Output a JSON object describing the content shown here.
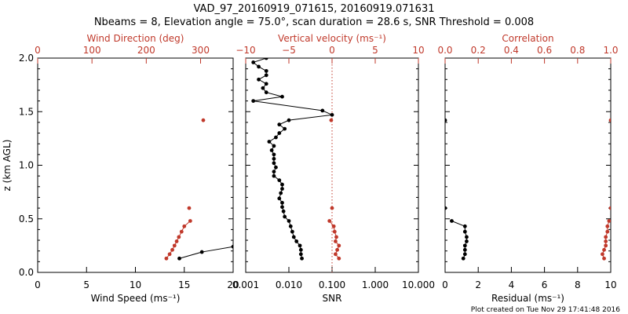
{
  "title_line1": "VAD_97_20160919_071615, 20160919.071631",
  "title_line2": "Nbeams = 8, Elevation angle = 75.0°, scan duration = 28.6 s, SNR Threshold = 0.008",
  "credit": "Plot created on Tue Nov 29 17:41:48 2016",
  "colors": {
    "black": "#000000",
    "red": "#c0392b"
  },
  "chart_data": [
    {
      "type": "scatter",
      "panel": "wind",
      "ylabel": "z (km AGL)",
      "ylim": [
        0,
        2
      ],
      "y_ticks": [
        "0.0",
        "0.5",
        "1.0",
        "1.5",
        "2.0"
      ],
      "bottom_axis": {
        "label": "Wind Speed (ms⁻¹)",
        "range": [
          0,
          20
        ],
        "ticks": [
          "0",
          "5",
          "10",
          "15",
          "20"
        ]
      },
      "top_axis": {
        "label": "Wind Direction (deg)",
        "range": [
          0,
          360
        ],
        "ticks": [
          "0",
          "100",
          "200",
          "300"
        ]
      },
      "series": [
        {
          "axis": "bottom",
          "connected": true,
          "color": "black",
          "points": [
            [
              14.5,
              0.13
            ],
            [
              16.8,
              0.19
            ],
            [
              20.0,
              0.24
            ]
          ]
        },
        {
          "axis": "top",
          "connected": true,
          "color": "red",
          "points": [
            [
              237,
              0.13
            ],
            [
              243,
              0.17
            ],
            [
              248,
              0.21
            ],
            [
              252,
              0.25
            ],
            [
              256,
              0.29
            ],
            [
              260,
              0.33
            ],
            [
              265,
              0.38
            ],
            [
              270,
              0.43
            ],
            [
              281,
              0.48
            ]
          ]
        },
        {
          "axis": "top",
          "connected": false,
          "color": "red",
          "points": [
            [
              279,
              0.6
            ],
            [
              305,
              1.42
            ]
          ]
        }
      ]
    },
    {
      "type": "line",
      "panel": "snr",
      "ylim": [
        0,
        2
      ],
      "bottom_axis": {
        "label": "SNR",
        "scale": "log",
        "range": [
          0.001,
          10
        ],
        "ticks": [
          "0.001",
          "0.010",
          "0.100",
          "1.000",
          "10.000"
        ]
      },
      "top_axis": {
        "label": "Vertical velocity (ms⁻¹)",
        "range": [
          -10,
          10
        ],
        "ticks": [
          "−10",
          "−5",
          "0",
          "5",
          "10"
        ]
      },
      "reference_line": {
        "axis": "top",
        "value": 0,
        "style": "dotted",
        "color": "red"
      },
      "series": [
        {
          "axis": "bottom",
          "connected": true,
          "color": "black",
          "points": [
            [
              0.02,
              0.13
            ],
            [
              0.019,
              0.17
            ],
            [
              0.019,
              0.21
            ],
            [
              0.018,
              0.25
            ],
            [
              0.015,
              0.29
            ],
            [
              0.013,
              0.33
            ],
            [
              0.012,
              0.38
            ],
            [
              0.011,
              0.43
            ],
            [
              0.01,
              0.48
            ],
            [
              0.008,
              0.52
            ],
            [
              0.0075,
              0.57
            ],
            [
              0.007,
              0.61
            ],
            [
              0.007,
              0.65
            ],
            [
              0.006,
              0.69
            ],
            [
              0.0065,
              0.74
            ],
            [
              0.007,
              0.78
            ],
            [
              0.007,
              0.82
            ],
            [
              0.006,
              0.86
            ],
            [
              0.0045,
              0.9
            ],
            [
              0.0045,
              0.94
            ],
            [
              0.005,
              0.98
            ],
            [
              0.0045,
              1.02
            ],
            [
              0.0045,
              1.06
            ],
            [
              0.0045,
              1.1
            ],
            [
              0.004,
              1.14
            ],
            [
              0.0045,
              1.18
            ],
            [
              0.0035,
              1.22
            ],
            [
              0.005,
              1.26
            ],
            [
              0.006,
              1.3
            ],
            [
              0.008,
              1.34
            ],
            [
              0.006,
              1.38
            ],
            [
              0.01,
              1.42
            ],
            [
              0.1,
              1.47
            ],
            [
              0.06,
              1.51
            ],
            [
              0.0015,
              1.6
            ],
            [
              0.007,
              1.64
            ],
            [
              0.003,
              1.68
            ],
            [
              0.0025,
              1.72
            ],
            [
              0.003,
              1.76
            ],
            [
              0.002,
              1.8
            ],
            [
              0.003,
              1.84
            ],
            [
              0.003,
              1.88
            ],
            [
              0.002,
              1.92
            ],
            [
              0.0015,
              1.96
            ],
            [
              0.003,
              2.0
            ]
          ]
        },
        {
          "axis": "top",
          "connected": true,
          "color": "red",
          "points": [
            [
              0.8,
              0.13
            ],
            [
              0.4,
              0.17
            ],
            [
              0.6,
              0.21
            ],
            [
              0.8,
              0.25
            ],
            [
              0.4,
              0.29
            ],
            [
              0.5,
              0.33
            ],
            [
              0.3,
              0.38
            ],
            [
              0.2,
              0.43
            ],
            [
              -0.3,
              0.48
            ]
          ]
        },
        {
          "axis": "top",
          "connected": false,
          "color": "red",
          "points": [
            [
              0.0,
              0.6
            ],
            [
              -0.1,
              1.42
            ]
          ]
        }
      ]
    },
    {
      "type": "line",
      "panel": "residual",
      "ylim": [
        0,
        2
      ],
      "bottom_axis": {
        "label": "Residual (ms⁻¹)",
        "range": [
          0,
          10
        ],
        "ticks": [
          "0",
          "2",
          "4",
          "6",
          "8",
          "10"
        ]
      },
      "top_axis": {
        "label": "Correlation",
        "range": [
          0,
          1
        ],
        "ticks": [
          "0.0",
          "0.2",
          "0.4",
          "0.6",
          "0.8",
          "1.0"
        ]
      },
      "series": [
        {
          "axis": "bottom",
          "connected": true,
          "color": "black",
          "points": [
            [
              1.1,
              0.13
            ],
            [
              1.2,
              0.17
            ],
            [
              1.2,
              0.21
            ],
            [
              1.2,
              0.25
            ],
            [
              1.3,
              0.29
            ],
            [
              1.3,
              0.33
            ],
            [
              1.2,
              0.38
            ],
            [
              1.2,
              0.43
            ],
            [
              0.4,
              0.48
            ]
          ]
        },
        {
          "axis": "bottom",
          "connected": false,
          "color": "black",
          "points": [
            [
              0.0,
              0.6
            ],
            [
              0.0,
              1.42
            ]
          ]
        },
        {
          "axis": "top",
          "connected": true,
          "color": "red",
          "points": [
            [
              0.96,
              0.13
            ],
            [
              0.95,
              0.17
            ],
            [
              0.96,
              0.21
            ],
            [
              0.97,
              0.25
            ],
            [
              0.97,
              0.29
            ],
            [
              0.97,
              0.33
            ],
            [
              0.98,
              0.38
            ],
            [
              0.98,
              0.43
            ],
            [
              0.99,
              0.48
            ]
          ]
        },
        {
          "axis": "top",
          "connected": false,
          "color": "red",
          "points": [
            [
              1.0,
              0.6
            ],
            [
              1.0,
              1.42
            ]
          ]
        }
      ]
    }
  ]
}
